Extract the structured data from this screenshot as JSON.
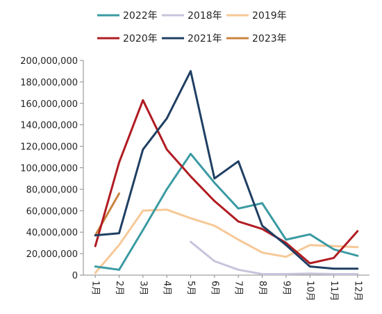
{
  "chart_data": {
    "type": "line",
    "categories": [
      "1月",
      "2月",
      "3月",
      "4月",
      "5月",
      "6月",
      "7月",
      "8月",
      "9月",
      "10月",
      "11月",
      "12月"
    ],
    "ylim": [
      0,
      200000000
    ],
    "y_ticks": [
      0,
      20000000,
      40000000,
      60000000,
      80000000,
      100000000,
      120000000,
      140000000,
      160000000,
      180000000,
      200000000
    ],
    "y_tick_labels": [
      "0",
      "20,000,000",
      "40,000,000",
      "60,000,000",
      "80,000,000",
      "100,000,000",
      "120,000,000",
      "140,000,000",
      "160,000,000",
      "180,000,000",
      "200,000,000"
    ],
    "grid": false,
    "legend_position": "top",
    "series": [
      {
        "name": "2022年",
        "color": "#3a9aa2",
        "values": [
          8000000,
          5000000,
          42000000,
          80000000,
          113000000,
          86000000,
          62000000,
          67000000,
          33000000,
          38000000,
          24000000,
          18000000
        ]
      },
      {
        "name": "2018年",
        "color": "#c9c3dc",
        "values": [
          null,
          null,
          null,
          null,
          31000000,
          13000000,
          5000000,
          1000000,
          1000000,
          1500000,
          1000000,
          1000000
        ]
      },
      {
        "name": "2019年",
        "color": "#f6c896",
        "values": [
          2000000,
          28000000,
          60000000,
          61000000,
          53000000,
          46000000,
          33000000,
          21000000,
          17000000,
          28000000,
          27000000,
          26000000
        ]
      },
      {
        "name": "2020年",
        "color": "#b01c22",
        "values": [
          27000000,
          105000000,
          163000000,
          117000000,
          92000000,
          69000000,
          50000000,
          43000000,
          30000000,
          11000000,
          16000000,
          41000000
        ]
      },
      {
        "name": "2021年",
        "color": "#1f3f63",
        "values": [
          37000000,
          39000000,
          117000000,
          146000000,
          190000000,
          90000000,
          106000000,
          46000000,
          28000000,
          8000000,
          6000000,
          6000000
        ]
      },
      {
        "name": "2023年",
        "color": "#c9843e",
        "values": [
          37000000,
          76000000,
          null,
          null,
          null,
          null,
          null,
          null,
          null,
          null,
          null,
          null
        ]
      }
    ]
  }
}
